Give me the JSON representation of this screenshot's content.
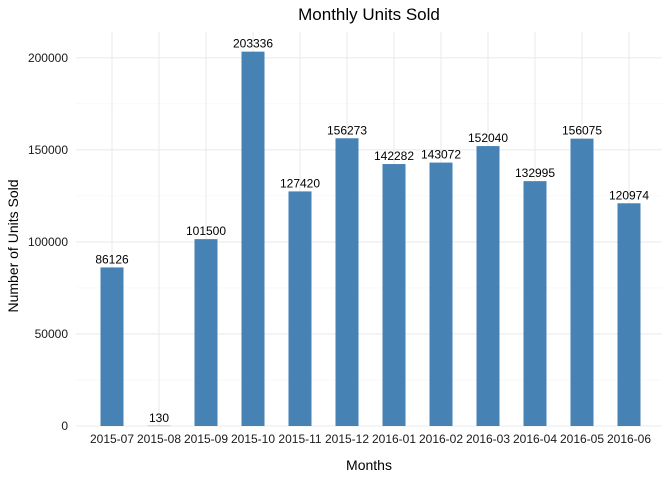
{
  "chart_data": {
    "type": "bar",
    "title": "Monthly Units Sold",
    "xlabel": "Months",
    "ylabel": "Number of Units Sold",
    "categories": [
      "2015-07",
      "2015-08",
      "2015-09",
      "2015-10",
      "2015-11",
      "2015-12",
      "2016-01",
      "2016-02",
      "2016-03",
      "2016-04",
      "2016-05",
      "2016-06"
    ],
    "values": [
      86126,
      130,
      101500,
      203336,
      127420,
      156273,
      142282,
      143072,
      152040,
      132995,
      156075,
      120974
    ],
    "ylim": [
      0,
      214000
    ],
    "yticks": [
      0,
      50000,
      100000,
      150000,
      200000
    ],
    "bar_color": "#4682B4",
    "grid": true,
    "legend": "none"
  }
}
